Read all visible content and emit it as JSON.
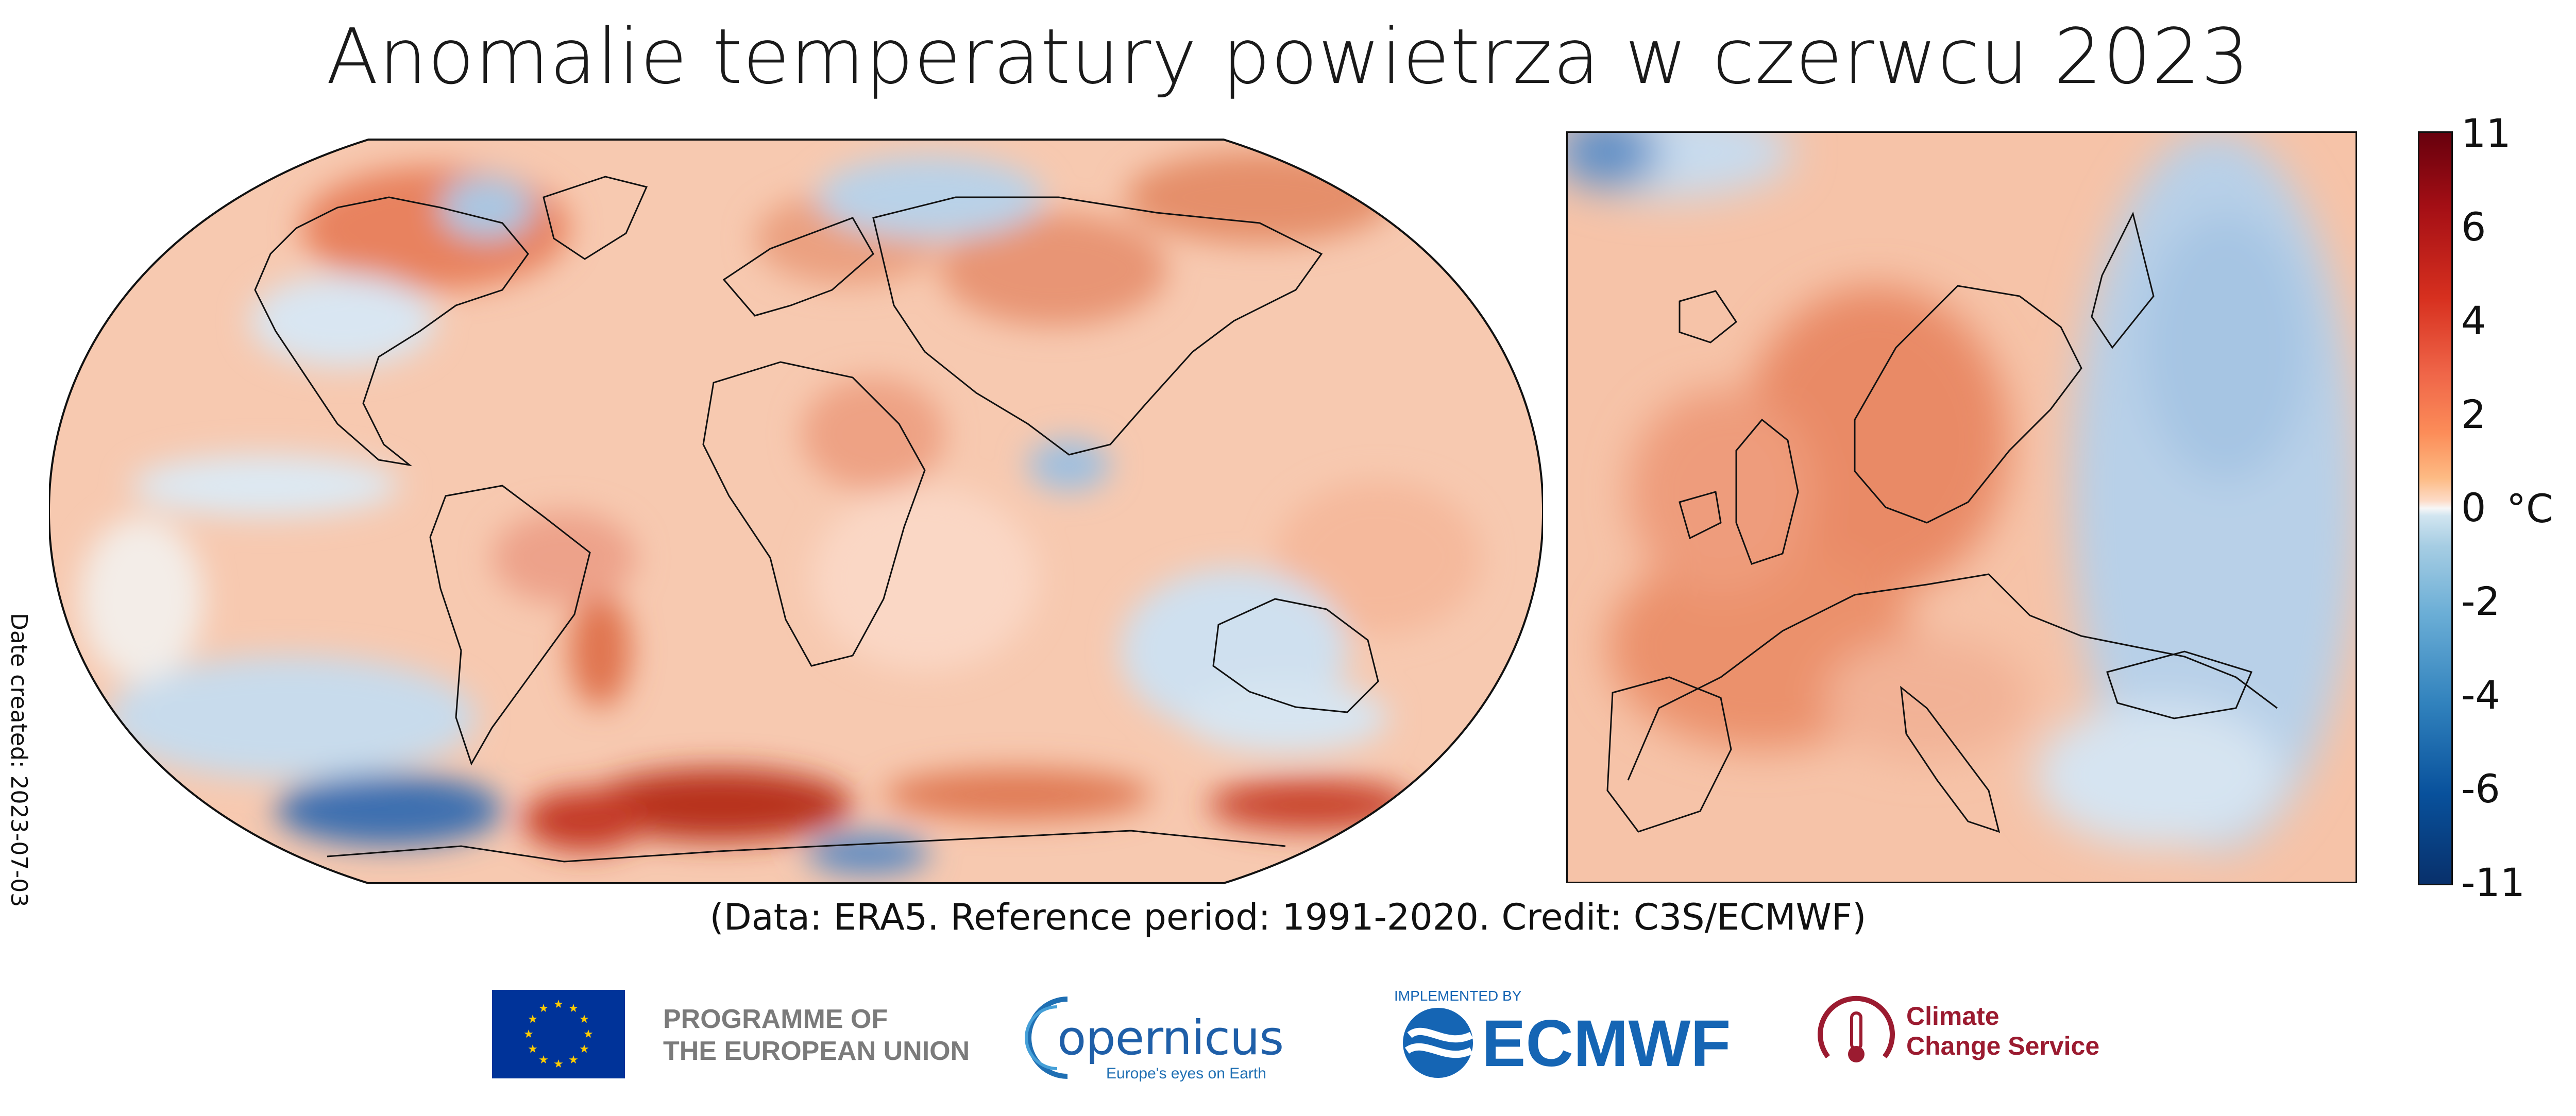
{
  "title": "Anomalie temperatury powietrza w czerwcu 2023",
  "date_created": "Date created: 2023-07-03",
  "credit": "(Data: ERA5.  Reference period: 1991-2020.  Credit: C3S/ECMWF)",
  "colorbar": {
    "unit": "°C",
    "ticks": [
      "11",
      "6",
      "4",
      "2",
      "0",
      "-2",
      "-4",
      "-6",
      "-11"
    ]
  },
  "colors": {
    "warm": "#d7301f",
    "cold": "#2166ac",
    "neutral": "#f7f7f7"
  },
  "maps": {
    "global": "global-temperature-anomaly-map",
    "europe": "europe-temperature-anomaly-map"
  },
  "logos": {
    "eu_line1": "PROGRAMME OF",
    "eu_line2": "THE EUROPEAN UNION",
    "copernicus_name": "opernicus",
    "copernicus_tagline": "Europe's eyes on Earth",
    "ecmwf_implemented": "IMPLEMENTED BY",
    "ecmwf_name": "ECMWF",
    "c3s_line1": "Climate",
    "c3s_line2": "Change Service"
  }
}
